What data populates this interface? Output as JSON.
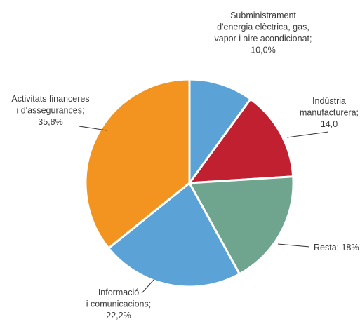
{
  "chart_data": {
    "type": "pie",
    "title": "",
    "slices": [
      {
        "label_lines": [
          "Subministrament",
          "d'energia elèctrica, gas,",
          "vapor i aire acondicionat;",
          "10,0%"
        ],
        "value": 10.0,
        "color": "#5ba3d6"
      },
      {
        "label_lines": [
          "Indústria",
          "manufacturera;",
          "14,0"
        ],
        "value": 14.0,
        "color": "#c0202f"
      },
      {
        "label_lines": [
          "Resta; 18%"
        ],
        "value": 18.0,
        "color": "#6fa58e"
      },
      {
        "label_lines": [
          "Informació",
          "i comunicacions;",
          "22,2%"
        ],
        "value": 22.2,
        "color": "#5ba3d6"
      },
      {
        "label_lines": [
          "Activitats financeres",
          "i d'assegurances;",
          "35,8%"
        ],
        "value": 35.8,
        "color": "#f39320"
      }
    ]
  }
}
